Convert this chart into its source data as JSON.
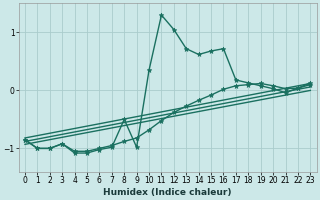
{
  "xlabel": "Humidex (Indice chaleur)",
  "bg_color": "#cce8e8",
  "grid_color": "#aacccc",
  "line_color": "#1a7060",
  "xlim": [
    -0.5,
    23.5
  ],
  "ylim": [
    -1.4,
    1.5
  ],
  "yticks": [
    -1,
    0,
    1
  ],
  "xticks": [
    0,
    1,
    2,
    3,
    4,
    5,
    6,
    7,
    8,
    9,
    10,
    11,
    12,
    13,
    14,
    15,
    16,
    17,
    18,
    19,
    20,
    21,
    22,
    23
  ],
  "series1_x": [
    0,
    1,
    2,
    3,
    4,
    5,
    6,
    7,
    8,
    9,
    10,
    11,
    12,
    13,
    14,
    15,
    16,
    17,
    18,
    19,
    20,
    21,
    22,
    23
  ],
  "series1_y": [
    -0.85,
    -1.0,
    -1.0,
    -0.92,
    -1.08,
    -1.08,
    -1.02,
    -0.98,
    -0.5,
    -0.98,
    0.35,
    1.3,
    1.05,
    0.72,
    0.62,
    0.68,
    0.72,
    0.18,
    0.13,
    0.08,
    0.03,
    -0.04,
    0.04,
    0.13
  ],
  "series2_x": [
    0,
    1,
    2,
    3,
    4,
    5,
    6,
    7,
    8,
    9,
    10,
    11,
    12,
    13,
    14,
    15,
    16,
    17,
    18,
    19,
    20,
    21,
    22,
    23
  ],
  "series2_y": [
    -0.85,
    -1.0,
    -1.0,
    -0.92,
    -1.05,
    -1.05,
    -1.0,
    -0.95,
    -0.88,
    -0.82,
    -0.68,
    -0.52,
    -0.38,
    -0.27,
    -0.17,
    -0.08,
    0.02,
    0.08,
    0.1,
    0.12,
    0.08,
    0.03,
    0.04,
    0.1
  ],
  "line1_x": [
    0,
    23
  ],
  "line1_y": [
    -0.82,
    0.12
  ],
  "line2_x": [
    0,
    23
  ],
  "line2_y": [
    -0.88,
    0.06
  ],
  "line3_x": [
    0,
    23
  ],
  "line3_y": [
    -0.93,
    0.0
  ],
  "marker": "*",
  "markersize": 3.5,
  "linewidth": 1.0,
  "xlabel_fontsize": 6.5,
  "tick_fontsize": 5.5
}
